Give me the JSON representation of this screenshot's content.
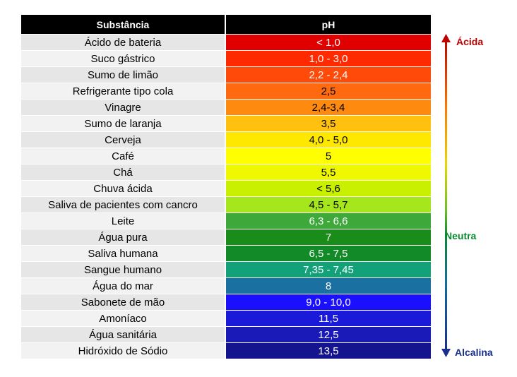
{
  "header": {
    "substance": "Substância",
    "ph": "pH"
  },
  "rows": [
    {
      "name": "Ácido de bateria",
      "ph": "< 1,0",
      "color": "#e00000",
      "text": "#ffffff"
    },
    {
      "name": "Suco gástrico",
      "ph": "1,0 - 3,0",
      "color": "#ff2a00",
      "text": "#ffffff"
    },
    {
      "name": "Sumo de limão",
      "ph": "2,2 - 2,4",
      "color": "#ff4a0a",
      "text": "#ffffff"
    },
    {
      "name": "Refrigerante tipo cola",
      "ph": "2,5",
      "color": "#ff6a10",
      "text": "#000000"
    },
    {
      "name": "Vinagre",
      "ph": "2,4-3,4",
      "color": "#ff8a10",
      "text": "#000000"
    },
    {
      "name": "Sumo de laranja",
      "ph": "3,5",
      "color": "#ffc010",
      "text": "#000000"
    },
    {
      "name": "Cerveja",
      "ph": "4,0 - 5,0",
      "color": "#ffe800",
      "text": "#000000"
    },
    {
      "name": "Café",
      "ph": "5",
      "color": "#ffff00",
      "text": "#000000"
    },
    {
      "name": "Chá",
      "ph": "5,5",
      "color": "#f0f800",
      "text": "#000000"
    },
    {
      "name": "Chuva ácida",
      "ph": "< 5,6",
      "color": "#c8f000",
      "text": "#000000"
    },
    {
      "name": "Saliva de pacientes com cancro",
      "ph": "4,5 - 5,7",
      "color": "#a6e61c",
      "text": "#000000"
    },
    {
      "name": "Leite",
      "ph": "6,3 - 6,6",
      "color": "#3ea83a",
      "text": "#ffffff"
    },
    {
      "name": "Água pura",
      "ph": "7",
      "color": "#1a8c1a",
      "text": "#ffffff"
    },
    {
      "name": "Saliva humana",
      "ph": "6,5 - 7,5",
      "color": "#128a28",
      "text": "#ffffff"
    },
    {
      "name": "Sangue humano",
      "ph": "7,35 - 7,45",
      "color": "#13a17a",
      "text": "#ffffff"
    },
    {
      "name": "Água do mar",
      "ph": "8",
      "color": "#1a70a0",
      "text": "#ffffff"
    },
    {
      "name": "Sabonete de mão",
      "ph": "9,0 - 10,0",
      "color": "#1a10ff",
      "text": "#ffffff"
    },
    {
      "name": "Amoníaco",
      "ph": "11,5",
      "color": "#1a1ad8",
      "text": "#ffffff"
    },
    {
      "name": "Água sanitária",
      "ph": "12,5",
      "color": "#1a1ab8",
      "text": "#ffffff"
    },
    {
      "name": "Hidróxido de Sódio",
      "ph": "13,5",
      "color": "#14148f",
      "text": "#ffffff"
    }
  ],
  "scale": {
    "acid": "Ácida",
    "neutral": "Neutra",
    "alkaline": "Alcalina",
    "acid_color": "#c00000",
    "neutral_color": "#0a8a30",
    "alkaline_color": "#1a2f8a"
  }
}
